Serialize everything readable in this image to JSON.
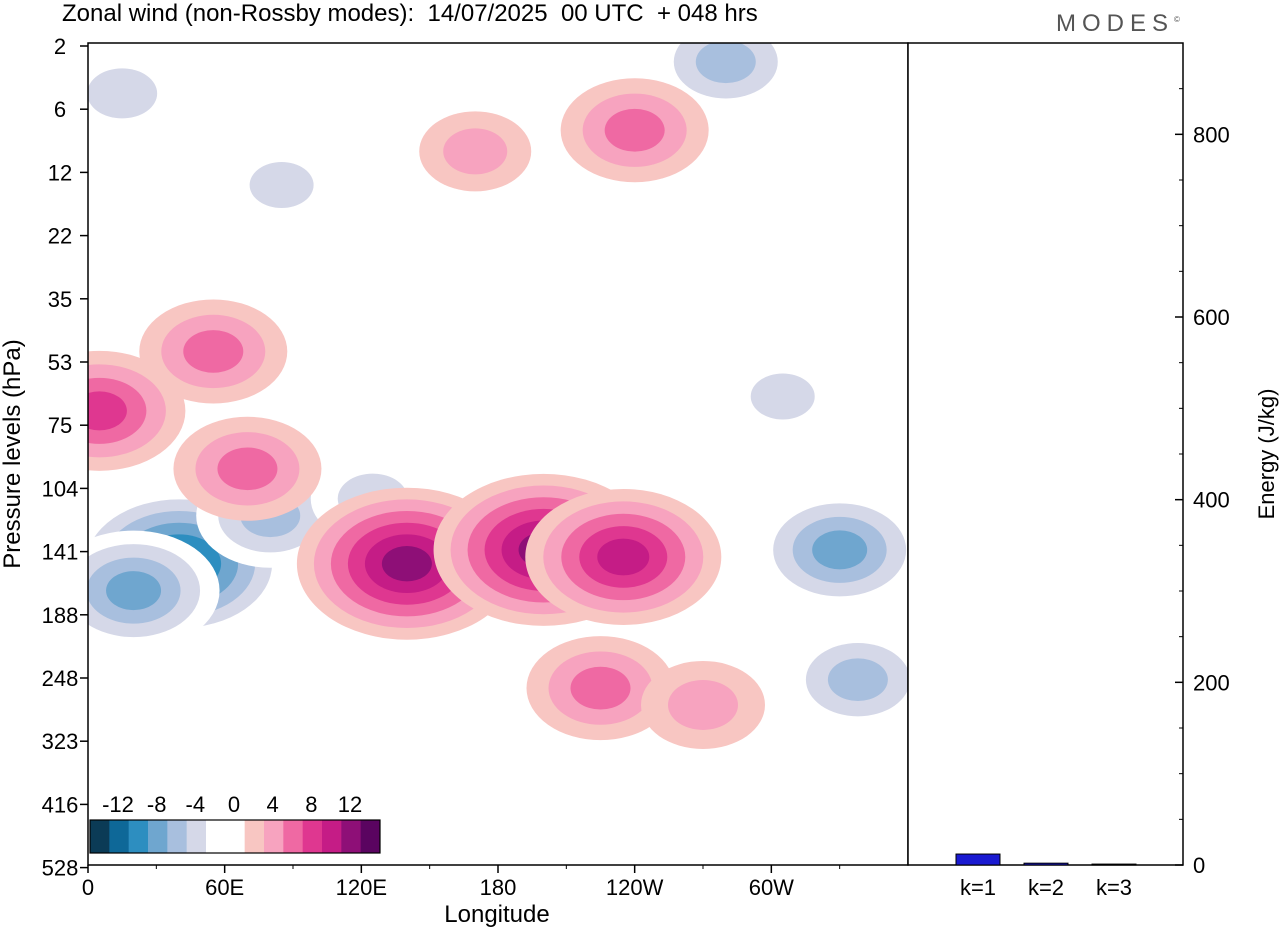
{
  "title": "Zonal wind (non-Rossby modes):  14/07/2025  00 UTC  + 048 hrs",
  "brand": "MODES",
  "brand_mark": "©",
  "chart_data": [
    {
      "type": "heatmap",
      "title": "Zonal wind (non-Rossby modes):  14/07/2025  00 UTC  + 048 hrs",
      "xlabel": "Longitude",
      "ylabel": "Pressure levels (hPa)",
      "x_ticks": [
        "0",
        "60E",
        "120E",
        "180",
        "120W",
        "60W"
      ],
      "y_ticks": [
        "2",
        "6",
        "12",
        "22",
        "35",
        "53",
        "75",
        "104",
        "141",
        "188",
        "248",
        "323",
        "416",
        "528"
      ],
      "colorbar": {
        "labels": [
          "-12",
          "-8",
          "-4",
          "0",
          "4",
          "8",
          "12"
        ],
        "colors": [
          "#0b3b56",
          "#0e6898",
          "#2d8ec0",
          "#6fa6cf",
          "#a8bfde",
          "#d5d8e8",
          "#ffffff",
          "#ffffff",
          "#f8c6c2",
          "#f7a3bf",
          "#ef69a3",
          "#df3790",
          "#c51c86",
          "#8e0f77",
          "#5a0460"
        ]
      },
      "cells": [
        {
          "lon": 40,
          "p": 150,
          "value": -12
        },
        {
          "lon": 20,
          "p": 170,
          "value": -8
        },
        {
          "lon": 80,
          "p": 120,
          "value": -6
        },
        {
          "lon": 125,
          "p": 110,
          "value": -4
        },
        {
          "lon": 330,
          "p": 140,
          "value": -8
        },
        {
          "lon": 338,
          "p": 250,
          "value": -6
        },
        {
          "lon": 15,
          "p": 5,
          "value": -4
        },
        {
          "lon": 85,
          "p": 14,
          "value": -3
        },
        {
          "lon": 305,
          "p": 65,
          "value": -3
        },
        {
          "lon": 280,
          "p": 3,
          "value": -6
        },
        {
          "lon": 5,
          "p": 70,
          "value": 8
        },
        {
          "lon": 55,
          "p": 50,
          "value": 6
        },
        {
          "lon": 70,
          "p": 95,
          "value": 6
        },
        {
          "lon": 140,
          "p": 150,
          "value": 12
        },
        {
          "lon": 200,
          "p": 140,
          "value": 12
        },
        {
          "lon": 235,
          "p": 145,
          "value": 10
        },
        {
          "lon": 225,
          "p": 260,
          "value": 6
        },
        {
          "lon": 270,
          "p": 280,
          "value": 4
        },
        {
          "lon": 170,
          "p": 10,
          "value": 3
        },
        {
          "lon": 240,
          "p": 8,
          "value": 6
        }
      ]
    },
    {
      "type": "bar",
      "categories": [
        "k=1",
        "k=2",
        "k=3"
      ],
      "values": [
        12,
        2,
        1
      ],
      "ylabel": "Energy (J/kg)",
      "ylim": [
        0,
        900
      ],
      "y_ticks": [
        0,
        200,
        400,
        600,
        800
      ],
      "bar_color": "#1a1ad1"
    }
  ]
}
